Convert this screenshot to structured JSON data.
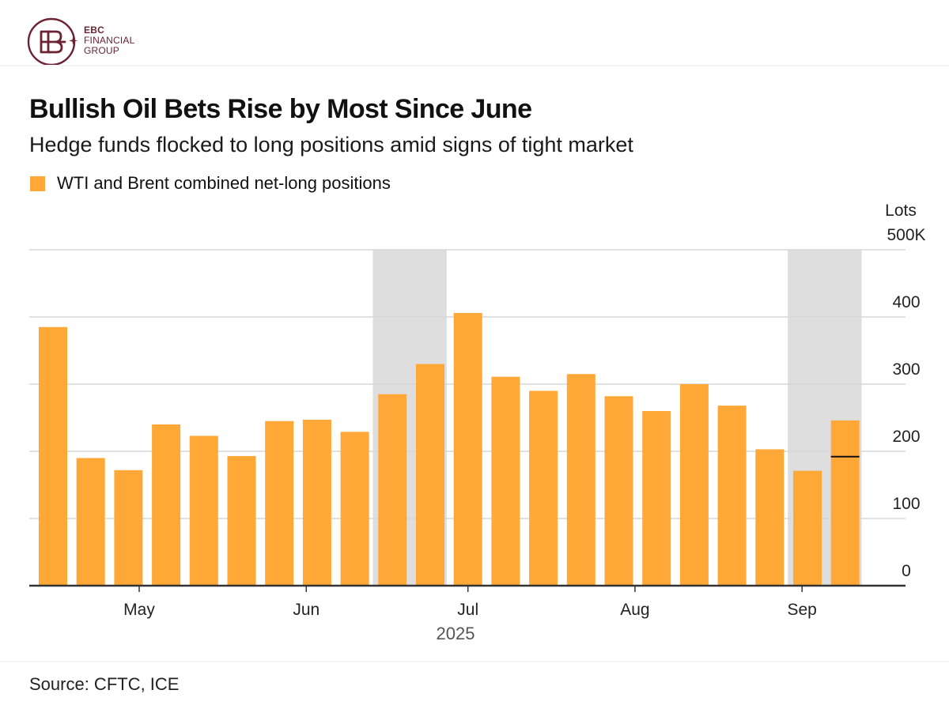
{
  "brand": {
    "line1": "EBC",
    "line2": "FINANCIAL",
    "line3": "GROUP",
    "color": "#6b2333"
  },
  "source": "Source: CFTC, ICE",
  "chart_data": {
    "type": "bar",
    "title": "Bullish Oil Bets Rise by Most Since June",
    "subtitle": "Hedge funds flocked to long positions amid signs of tight market",
    "legend": [
      {
        "name": "WTI and Brent combined net-long positions",
        "color": "#ffa737"
      }
    ],
    "series": [
      {
        "name": "WTI and Brent combined net-long positions",
        "color": "#ffa737",
        "x": [
          "2025-04-15",
          "2025-04-22",
          "2025-04-29",
          "2025-05-06",
          "2025-05-13",
          "2025-05-20",
          "2025-05-27",
          "2025-06-03",
          "2025-06-10",
          "2025-06-17",
          "2025-06-24",
          "2025-07-01",
          "2025-07-08",
          "2025-07-15",
          "2025-07-22",
          "2025-07-29",
          "2025-08-05",
          "2025-08-12",
          "2025-08-19",
          "2025-08-26",
          "2025-09-02",
          "2025-09-09"
        ],
        "values": [
          385,
          190,
          172,
          240,
          223,
          193,
          245,
          247,
          229,
          285,
          330,
          406,
          311,
          290,
          315,
          282,
          260,
          300,
          268,
          203,
          171,
          246
        ]
      }
    ],
    "reference_line": {
      "x": "2025-09-09",
      "value": 192,
      "color": "#111111"
    },
    "shaded_periods": [
      {
        "from": "2025-06-17",
        "to": "2025-06-24",
        "color": "#dedede"
      },
      {
        "from": "2025-09-02",
        "to": "2025-09-09",
        "color": "#dedede"
      }
    ],
    "y_axis": {
      "title": "Lots",
      "position": "right",
      "ylim": [
        0,
        500
      ],
      "ticks": [
        {
          "value": 500,
          "label": "500K"
        },
        {
          "value": 400,
          "label": "400"
        },
        {
          "value": 300,
          "label": "300"
        },
        {
          "value": 200,
          "label": "200"
        },
        {
          "value": 100,
          "label": "100"
        },
        {
          "value": 0,
          "label": "0"
        }
      ]
    },
    "x_axis": {
      "ticks": [
        {
          "date": "2025-05-01",
          "label": "May"
        },
        {
          "date": "2025-06-01",
          "label": "Jun"
        },
        {
          "date": "2025-07-01",
          "label": "Jul"
        },
        {
          "date": "2025-08-01",
          "label": "Aug"
        },
        {
          "date": "2025-09-01",
          "label": "Sep"
        }
      ],
      "year_label": "2025"
    },
    "grid": true
  }
}
